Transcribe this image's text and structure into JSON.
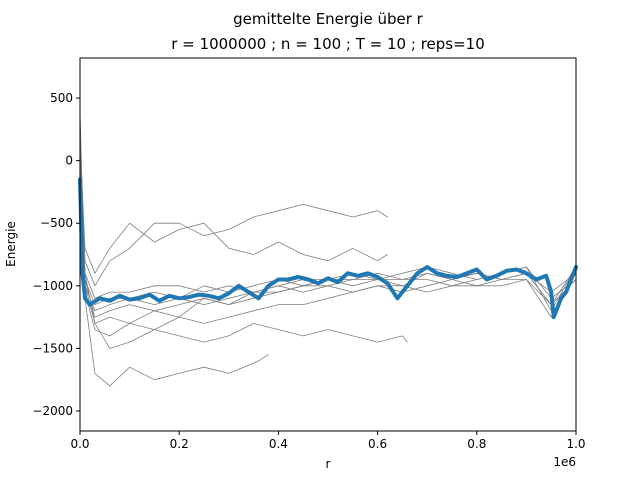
{
  "chart_data": {
    "type": "line",
    "title": "gemittelte Energie über r",
    "subtitle": "r = 1000000 ; n = 100 ; T = 10 ; reps=10",
    "xlabel": "r",
    "ylabel": "Energie",
    "x_offset_label": "1e6",
    "xlim": [
      0,
      1000000
    ],
    "ylim": [
      -2160,
      820
    ],
    "xticks": [
      0,
      200000,
      400000,
      600000,
      800000,
      1000000
    ],
    "xtick_labels": [
      "0.0",
      "0.2",
      "0.4",
      "0.6",
      "0.8",
      "1.0"
    ],
    "yticks": [
      -2000,
      -1500,
      -1000,
      -500,
      0,
      500
    ],
    "ytick_labels": [
      "−2000",
      "−1500",
      "−1000",
      "−500",
      "0",
      "500"
    ],
    "grid": false,
    "legend": "none",
    "colors": {
      "repetitions": "#808080",
      "mean": "#1f77b4"
    },
    "series": [
      {
        "x": [
          0,
          10000,
          30000,
          60000,
          100000,
          150000,
          200000,
          250000,
          300000,
          330000,
          360000,
          380000
        ],
        "y": [
          400,
          -1100,
          -1700,
          -1800,
          -1650,
          -1750,
          -1700,
          -1650,
          -1700,
          -1650,
          -1600,
          -1550
        ]
      },
      {
        "x": [
          0,
          10000,
          30000,
          60000,
          100000,
          150000,
          200000,
          250000,
          300000,
          350000,
          400000,
          450000,
          500000,
          550000,
          600000,
          650000,
          660000
        ],
        "y": [
          300,
          -900,
          -1300,
          -1500,
          -1450,
          -1350,
          -1400,
          -1450,
          -1400,
          -1300,
          -1350,
          -1400,
          -1350,
          -1400,
          -1450,
          -1400,
          -1450
        ]
      },
      {
        "x": [
          0,
          10000,
          30000,
          60000,
          100000,
          150000,
          200000,
          250000,
          300000,
          350000,
          400000,
          450000,
          500000,
          550000,
          600000,
          620000
        ],
        "y": [
          200,
          -800,
          -1000,
          -800,
          -700,
          -500,
          -500,
          -600,
          -550,
          -450,
          -400,
          -350,
          -400,
          -450,
          -400,
          -450
        ]
      },
      {
        "x": [
          0,
          10000,
          30000,
          60000,
          100000,
          150000,
          200000,
          250000,
          300000,
          350000,
          400000,
          450000,
          500000,
          550000,
          600000,
          620000
        ],
        "y": [
          150,
          -700,
          -900,
          -700,
          -500,
          -650,
          -550,
          -500,
          -700,
          -750,
          -650,
          -750,
          -800,
          -700,
          -800,
          -750
        ]
      },
      {
        "x": [
          0,
          10000,
          30000,
          60000,
          100000,
          150000,
          200000,
          250000,
          300000,
          350000,
          400000,
          450000,
          500000,
          550000,
          600000,
          650000,
          700000,
          750000,
          800000,
          850000,
          900000,
          950000,
          1000000
        ],
        "y": [
          100,
          -950,
          -1250,
          -1200,
          -1150,
          -1200,
          -1150,
          -1100,
          -1150,
          -1100,
          -1050,
          -1000,
          -950,
          -950,
          -950,
          -1000,
          -900,
          -950,
          -900,
          -950,
          -900,
          -1050,
          -900
        ]
      },
      {
        "x": [
          0,
          10000,
          30000,
          60000,
          100000,
          150000,
          200000,
          250000,
          300000,
          350000,
          400000,
          450000,
          500000,
          550000,
          600000,
          650000,
          700000,
          750000,
          800000,
          850000,
          900000,
          950000,
          1000000
        ],
        "y": [
          100,
          -1000,
          -1300,
          -1250,
          -1300,
          -1200,
          -1250,
          -1100,
          -1150,
          -1050,
          -1000,
          -1050,
          -1000,
          -950,
          -900,
          -950,
          -950,
          -1000,
          -950,
          -900,
          -850,
          -1100,
          -950
        ]
      },
      {
        "x": [
          0,
          10000,
          30000,
          60000,
          100000,
          150000,
          200000,
          250000,
          300000,
          350000,
          400000,
          450000,
          500000,
          550000,
          600000,
          650000,
          700000,
          750000,
          800000,
          850000,
          900000,
          950000,
          1000000
        ],
        "y": [
          0,
          -1050,
          -1350,
          -1400,
          -1300,
          -1350,
          -1250,
          -1300,
          -1250,
          -1200,
          -1150,
          -1150,
          -1100,
          -1050,
          -1000,
          -1000,
          -1050,
          -1000,
          -1000,
          -950,
          -950,
          -1150,
          -950
        ]
      },
      {
        "x": [
          0,
          10000,
          30000,
          60000,
          100000,
          150000,
          200000,
          250000,
          300000,
          350000,
          400000,
          450000,
          500000,
          550000,
          600000,
          650000,
          700000,
          750000,
          800000,
          850000,
          900000,
          950000,
          1000000
        ],
        "y": [
          0,
          -900,
          -1100,
          -1050,
          -1050,
          -1000,
          -1000,
          -1050,
          -1000,
          -1050,
          -1000,
          -950,
          -950,
          -1000,
          -950,
          -900,
          -850,
          -900,
          -950,
          -900,
          -850,
          -1200,
          -850
        ]
      },
      {
        "x": [
          0,
          10000,
          30000,
          60000,
          100000,
          150000,
          200000,
          250000,
          300000,
          350000,
          400000,
          450000,
          500000,
          550000,
          600000,
          650000,
          700000,
          750000,
          800000,
          850000,
          900000,
          950000,
          1000000
        ],
        "y": [
          -50,
          -1000,
          -1200,
          -1150,
          -1100,
          -1150,
          -1100,
          -1150,
          -1100,
          -1050,
          -1050,
          -1000,
          -1000,
          -1050,
          -1000,
          -1050,
          -1000,
          -950,
          -1000,
          -1000,
          -950,
          -1250,
          -900
        ]
      },
      {
        "x": [
          0,
          10000,
          30000,
          60000,
          100000,
          150000,
          200000,
          250000,
          300000,
          350000,
          400000,
          450000,
          500000,
          550000,
          600000,
          650000,
          700000,
          750000,
          800000,
          850000,
          900000,
          950000,
          1000000
        ],
        "y": [
          -100,
          -950,
          -1150,
          -1100,
          -1100,
          -1050,
          -1100,
          -1000,
          -1050,
          -1000,
          -950,
          -1000,
          -950,
          -900,
          -950,
          -950,
          -900,
          -950,
          -900,
          -950,
          -900,
          -1150,
          -850
        ]
      },
      {
        "x": [
          0,
          5000,
          10000,
          20000,
          40000,
          60000,
          80000,
          100000,
          120000,
          140000,
          160000,
          180000,
          200000,
          220000,
          240000,
          260000,
          280000,
          300000,
          320000,
          340000,
          360000,
          380000,
          400000,
          420000,
          440000,
          460000,
          480000,
          500000,
          520000,
          540000,
          560000,
          580000,
          600000,
          620000,
          640000,
          660000,
          680000,
          700000,
          720000,
          740000,
          760000,
          780000,
          800000,
          820000,
          840000,
          860000,
          880000,
          900000,
          920000,
          940000,
          950000,
          955000,
          960000,
          970000,
          980000,
          990000,
          1000000
        ],
        "y": [
          -150,
          -900,
          -1100,
          -1150,
          -1100,
          -1120,
          -1080,
          -1110,
          -1100,
          -1070,
          -1120,
          -1080,
          -1100,
          -1090,
          -1070,
          -1080,
          -1100,
          -1060,
          -1000,
          -1050,
          -1100,
          -1000,
          -950,
          -950,
          -930,
          -950,
          -980,
          -940,
          -970,
          -900,
          -920,
          -900,
          -930,
          -980,
          -1100,
          -1000,
          -900,
          -850,
          -900,
          -920,
          -930,
          -900,
          -870,
          -950,
          -920,
          -880,
          -870,
          -900,
          -950,
          -920,
          -1050,
          -1250,
          -1200,
          -1100,
          -1050,
          -950,
          -850
        ]
      }
    ]
  }
}
